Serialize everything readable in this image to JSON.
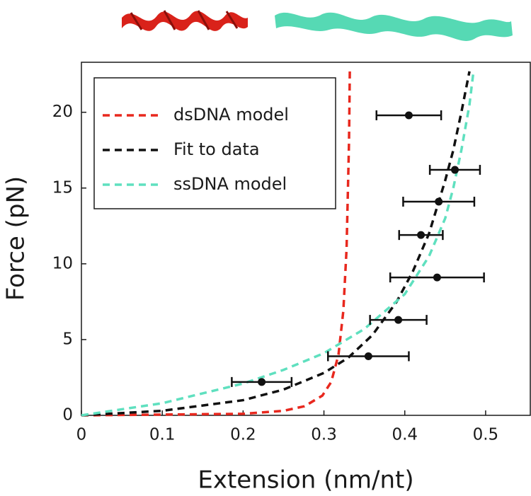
{
  "chart_data": {
    "type": "line",
    "x_label": "Extension (nm/nt)",
    "y_label": "Force (pN)",
    "xlim": [
      0,
      0.55
    ],
    "ylim": [
      0,
      23.3
    ],
    "xticks": [
      0,
      0.1,
      0.2,
      0.3,
      0.4,
      0.5
    ],
    "yticks": [
      0,
      5,
      10,
      15,
      20
    ],
    "legend": "upper left",
    "series": [
      {
        "name": "dsDNA model",
        "color": "#e8281e",
        "dashed": true,
        "x": [
          0,
          0.2,
          0.25,
          0.276,
          0.298,
          0.309,
          0.318,
          0.324,
          0.328,
          0.331,
          0.332
        ],
        "values": [
          0,
          0.1,
          0.3,
          0.6,
          1.3,
          2.2,
          4,
          6.9,
          11,
          18,
          22.7
        ]
      },
      {
        "name": "Fit to data",
        "color": "#111111",
        "dashed": true,
        "x": [
          0,
          0.1,
          0.2,
          0.25,
          0.3,
          0.33,
          0.36,
          0.39,
          0.41,
          0.43,
          0.45,
          0.46,
          0.47,
          0.48
        ],
        "values": [
          0,
          0.3,
          1.0,
          1.7,
          2.8,
          3.8,
          5.3,
          7.5,
          9.5,
          12,
          15.5,
          17.5,
          20,
          22.7
        ]
      },
      {
        "name": "ssDNA model",
        "color": "#5fe0bf",
        "dashed": true,
        "x": [
          0,
          0.1,
          0.2,
          0.25,
          0.3,
          0.35,
          0.4,
          0.43,
          0.45,
          0.46,
          0.47,
          0.48,
          0.485
        ],
        "values": [
          0,
          0.8,
          2.1,
          3,
          4.1,
          5.7,
          8,
          10.5,
          13,
          15,
          17.5,
          20.5,
          22.7
        ]
      },
      {
        "type": "scatter",
        "color": "#111111",
        "x": [
          0.223,
          0.355,
          0.392,
          0.44,
          0.42,
          0.442,
          0.462,
          0.405
        ],
        "values": [
          2.2,
          3.9,
          6.3,
          9.1,
          11.9,
          14.1,
          16.2,
          19.8
        ],
        "xerr": [
          0.037,
          0.05,
          0.035,
          0.058,
          0.027,
          0.044,
          0.031,
          0.04
        ]
      }
    ]
  }
}
